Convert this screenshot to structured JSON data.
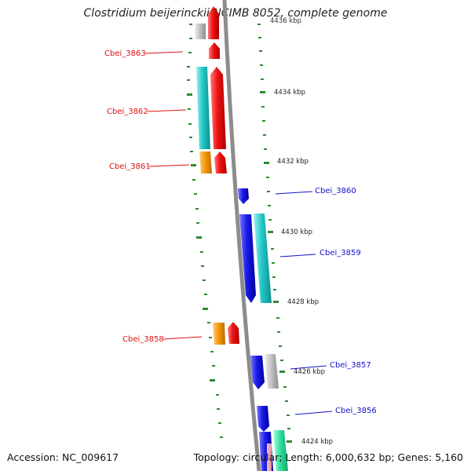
{
  "title": "Clostridium beijerinckii NCIMB 8052, complete genome",
  "footer": {
    "accession": "Accession: NC_009617",
    "summary": "Topology: circular; Length: 6,000,632 bp; Genes: 5,160"
  },
  "scale": {
    "unit": "kbp",
    "labels": [
      "4434 kbp",
      "4432 kbp",
      "4430 kbp",
      "4428 kbp",
      "4426 kbp",
      "4424 kbp"
    ],
    "partial_top_label": "4436 kbp"
  },
  "colors": {
    "backbone": "#8c8c8c",
    "tick": "#2e8b2e",
    "red": "#ee1111",
    "cyan": "#22c8c8",
    "orange": "#f39a0c",
    "blue": "#1a1ae6",
    "gray": "#c4c4c4",
    "mint": "#33e0a0",
    "label_red": "#dd1111",
    "label_blue": "#1111cc"
  },
  "gene_labels": [
    {
      "name": "Cbei_3863",
      "strand": "reverse"
    },
    {
      "name": "Cbei_3862",
      "strand": "reverse"
    },
    {
      "name": "Cbei_3861",
      "strand": "reverse"
    },
    {
      "name": "Cbei_3860",
      "strand": "forward"
    },
    {
      "name": "Cbei_3859",
      "strand": "forward"
    },
    {
      "name": "Cbei_3858",
      "strand": "reverse"
    },
    {
      "name": "Cbei_3857",
      "strand": "forward"
    },
    {
      "name": "Cbei_3856",
      "strand": "forward"
    }
  ]
}
